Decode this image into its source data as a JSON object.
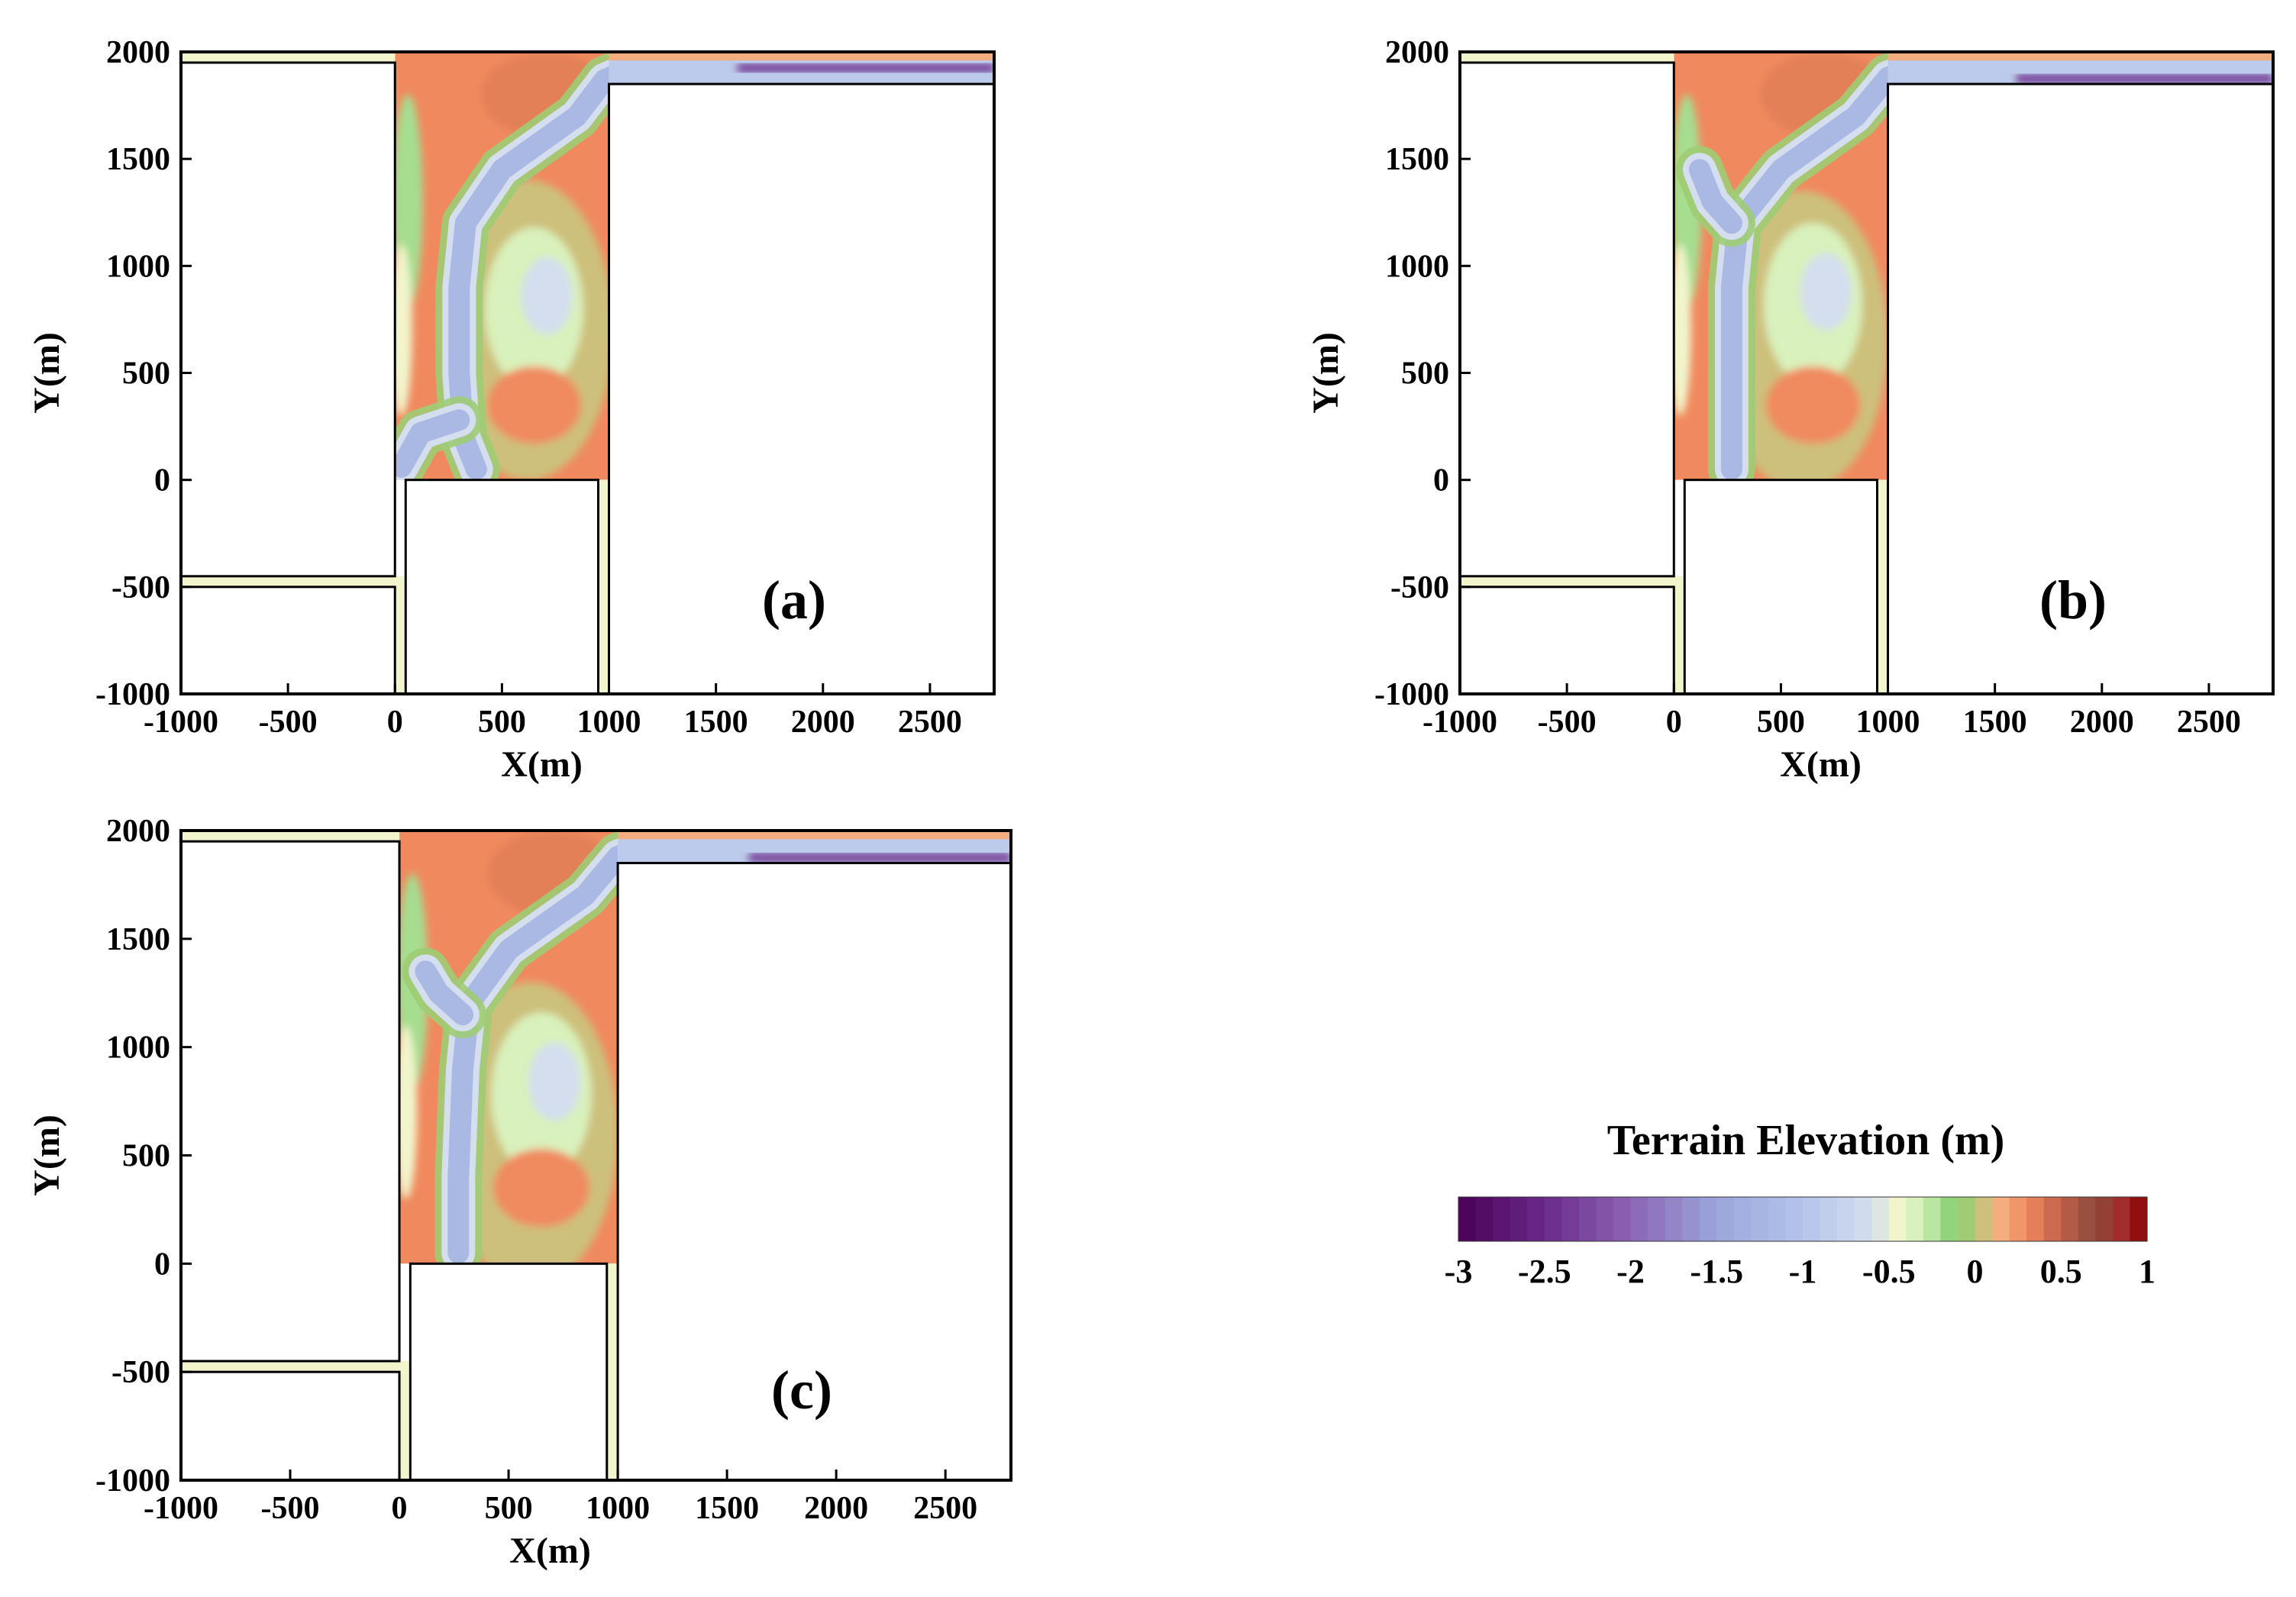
{
  "chart_data": {
    "type": "heatmap",
    "variable": "Terrain Elevation (m)",
    "panels": [
      {
        "label": "(a)",
        "xlabel": "X(m)",
        "ylabel": "Y(m)",
        "xlim": [
          -1000,
          2800
        ],
        "ylim": [
          -1000,
          2000
        ],
        "xticks": [
          "-1000",
          "-500",
          "0",
          "500",
          "1000",
          "1500",
          "2000",
          "2500"
        ],
        "yticks": [
          "-1000",
          "-500",
          "0",
          "500",
          "1000",
          "1500",
          "2000"
        ],
        "channel_path": [
          [
            380,
            50
          ],
          [
            320,
            200
          ],
          [
            300,
            500
          ],
          [
            300,
            900
          ],
          [
            330,
            1200
          ],
          [
            500,
            1450
          ],
          [
            850,
            1700
          ],
          [
            980,
            1870
          ],
          [
            1100,
            1920
          ],
          [
            2800,
            1920
          ]
        ],
        "branch_path": [
          [
            300,
            280
          ],
          [
            120,
            220
          ],
          [
            30,
            60
          ]
        ],
        "high_zone_center": [
          620,
          700
        ],
        "low_zone_center": [
          650,
          800
        ]
      },
      {
        "label": "(b)",
        "xlabel": "X(m)",
        "ylabel": "Y(m)",
        "xlim": [
          -1000,
          2800
        ],
        "ylim": [
          -1000,
          2000
        ],
        "xticks": [
          "-1000",
          "-500",
          "0",
          "500",
          "1000",
          "1500",
          "2000",
          "2500"
        ],
        "yticks": [
          "-1000",
          "-500",
          "0",
          "500",
          "1000",
          "1500",
          "2000"
        ],
        "channel_path": [
          [
            270,
            50
          ],
          [
            270,
            300
          ],
          [
            270,
            900
          ],
          [
            300,
            1200
          ],
          [
            500,
            1450
          ],
          [
            850,
            1700
          ],
          [
            1000,
            1880
          ],
          [
            1100,
            1920
          ],
          [
            2800,
            1900
          ]
        ],
        "branch_path": [
          [
            270,
            1200
          ],
          [
            180,
            1300
          ],
          [
            120,
            1450
          ]
        ],
        "high_zone_center": [
          600,
          650
        ],
        "low_zone_center": [
          650,
          820
        ]
      },
      {
        "label": "(c)",
        "xlabel": "X(m)",
        "ylabel": "Y(m)",
        "xlim": [
          -1000,
          2800
        ],
        "ylim": [
          -1000,
          2000
        ],
        "xticks": [
          "-1000",
          "-500",
          "0",
          "500",
          "1000",
          "1500",
          "2000",
          "2500"
        ],
        "yticks": [
          "-1000",
          "-500",
          "0",
          "500",
          "1000",
          "1500",
          "2000"
        ],
        "channel_path": [
          [
            270,
            50
          ],
          [
            270,
            400
          ],
          [
            290,
            900
          ],
          [
            320,
            1200
          ],
          [
            500,
            1450
          ],
          [
            850,
            1700
          ],
          [
            1000,
            1880
          ],
          [
            1100,
            1920
          ],
          [
            2800,
            1900
          ]
        ],
        "branch_path": [
          [
            290,
            1150
          ],
          [
            180,
            1250
          ],
          [
            120,
            1350
          ]
        ],
        "high_zone_center": [
          600,
          600
        ],
        "low_zone_center": [
          650,
          780
        ]
      }
    ],
    "geometry": {
      "active_region_x": [
        0,
        1000
      ],
      "active_region_y": [
        0,
        2000
      ],
      "upper_left_block": {
        "x": [
          -1000,
          0
        ],
        "y": [
          -450,
          1950
        ]
      },
      "lower_left_block": {
        "x": [
          -1000,
          0
        ],
        "y": [
          -1000,
          -500
        ]
      },
      "lower_middle_block": {
        "x": [
          50,
          950
        ],
        "y": [
          -1000,
          0
        ]
      },
      "right_block": {
        "x": [
          1000,
          2800
        ],
        "y": [
          -1000,
          1850
        ]
      },
      "top_channel_y": [
        1850,
        2000
      ]
    },
    "colorbar": {
      "title": "Terrain Elevation (m)",
      "min": -3,
      "max": 1,
      "ticks": [
        "-3",
        "-2.5",
        "-2",
        "-1.5",
        "-1",
        "-0.5",
        "0",
        "0.5",
        "1"
      ],
      "stops": [
        {
          "v": -3.0,
          "c": "#4b0055"
        },
        {
          "v": -2.5,
          "c": "#6a2a8a"
        },
        {
          "v": -2.0,
          "c": "#8c64b4"
        },
        {
          "v": -1.5,
          "c": "#9aa6dc"
        },
        {
          "v": -1.0,
          "c": "#b4c4ea"
        },
        {
          "v": -0.6,
          "c": "#d4deee"
        },
        {
          "v": -0.45,
          "c": "#f2f5cc"
        },
        {
          "v": -0.3,
          "c": "#cdefb4"
        },
        {
          "v": -0.15,
          "c": "#92d47c"
        },
        {
          "v": 0.0,
          "c": "#a6c870"
        },
        {
          "v": 0.1,
          "c": "#f4b888"
        },
        {
          "v": 0.3,
          "c": "#f08a5e"
        },
        {
          "v": 0.5,
          "c": "#c0604a"
        },
        {
          "v": 0.7,
          "c": "#8c4a3a"
        },
        {
          "v": 0.85,
          "c": "#a02c2c"
        },
        {
          "v": 1.0,
          "c": "#8b0000"
        }
      ]
    }
  }
}
